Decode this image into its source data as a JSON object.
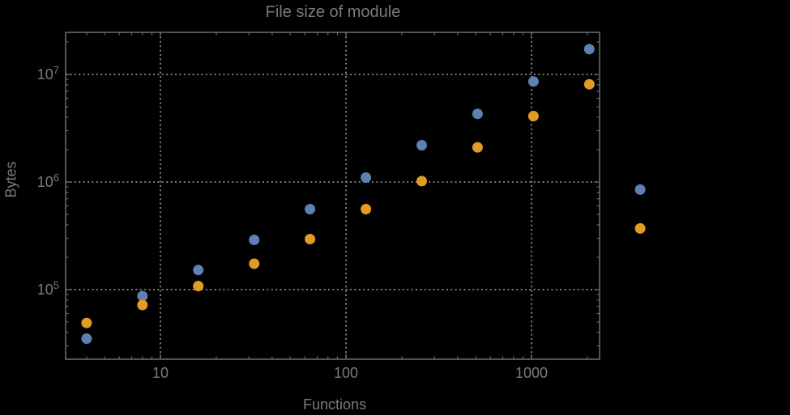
{
  "title": "File size of module",
  "colors": {
    "background": "#000000",
    "frame": "#6f6f6f",
    "grid": "#8a8a8a",
    "text": "#7a7a7a",
    "series_blue": "#5e81b5",
    "series_orange": "#e19c24"
  },
  "chart_data": {
    "type": "scatter",
    "title": "File size of module",
    "xlabel": "Functions",
    "ylabel": "Bytes",
    "x_scale": "log",
    "y_scale": "log",
    "xlim": [
      3.1,
      2320
    ],
    "ylim": [
      22500,
      24600000
    ],
    "grid": "dotted-major",
    "legend": "none",
    "note": "two rightmost points plotted outside frame right edge",
    "x": [
      4,
      8,
      16,
      32,
      64,
      128,
      256,
      512,
      1024,
      2048,
      3850
    ],
    "series": [
      {
        "name": "blue",
        "color": "#5e81b5",
        "values": [
          35000,
          87000,
          152000,
          290000,
          560000,
          1100000,
          2200000,
          4300000,
          8600000,
          17200000,
          850000
        ]
      },
      {
        "name": "orange",
        "color": "#e19c24",
        "values": [
          49000,
          72000,
          108000,
          174000,
          295000,
          560000,
          1020000,
          2100000,
          4100000,
          8100000,
          370000
        ]
      }
    ],
    "x_ticks": [
      {
        "label": "10",
        "value": 10
      },
      {
        "label": "100",
        "value": 100
      },
      {
        "label": "1000",
        "value": 1000
      }
    ],
    "y_ticks": [
      {
        "base": "10",
        "exp": "7",
        "value": 10000000
      },
      {
        "base": "10",
        "exp": "6",
        "value": 1000000
      },
      {
        "base": "10",
        "exp": "5",
        "value": 100000
      }
    ]
  }
}
